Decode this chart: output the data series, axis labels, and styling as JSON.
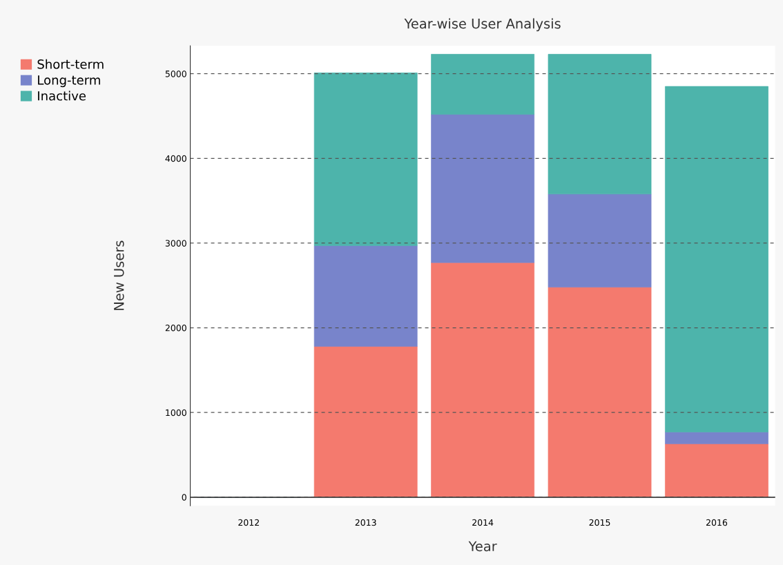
{
  "chart_data": {
    "type": "bar",
    "title": "Year-wise User Analysis",
    "xlabel": "Year",
    "ylabel": "New Users",
    "categories": [
      "2012",
      "2013",
      "2014",
      "2015",
      "2016"
    ],
    "stacked": true,
    "series": [
      {
        "name": "Short-term",
        "color": "#f47a6e",
        "values": [
          0,
          1780,
          2770,
          2480,
          630
        ]
      },
      {
        "name": "Long-term",
        "color": "#7884cb",
        "values": [
          0,
          1190,
          1750,
          1100,
          140
        ]
      },
      {
        "name": "Inactive",
        "color": "#4db4ab",
        "values": [
          0,
          2040,
          710,
          1650,
          4080
        ]
      }
    ],
    "ylim": [
      -100,
      5330
    ],
    "yticks": [
      0,
      1000,
      2000,
      3000,
      4000,
      5000
    ],
    "grid": "y",
    "legend": "top left",
    "ref_lines": [
      {
        "axis": "y",
        "value": 0,
        "color": "#333333",
        "line_style": "solid"
      }
    ]
  }
}
